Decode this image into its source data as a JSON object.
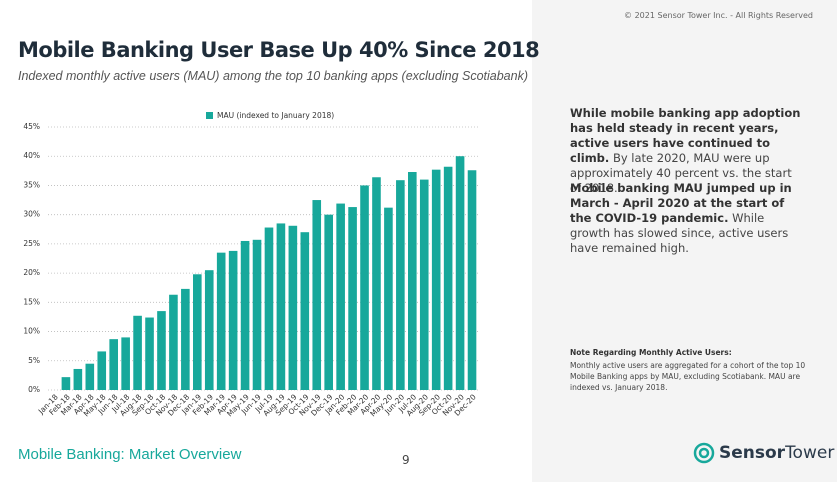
{
  "copyright": "© 2021 Sensor Tower Inc. - All Rights Reserved",
  "chart_data": {
    "type": "bar",
    "title": "Mobile Banking User Base Up 40% Since 2018",
    "subtitle": "Indexed monthly active users (MAU) among the top 10 banking apps (excluding Scotiabank)",
    "categories": [
      "Jan-18",
      "Feb-18",
      "Mar-18",
      "Apr-18",
      "May-18",
      "Jun-18",
      "Jul-18",
      "Aug-18",
      "Sep-18",
      "Oct-18",
      "Nov-18",
      "Dec-18",
      "Jan-19",
      "Feb-19",
      "Mar-19",
      "Apr-19",
      "May-19",
      "Jun-19",
      "Jul-19",
      "Aug-19",
      "Sep-19",
      "Oct-19",
      "Nov-19",
      "Dec-19",
      "Jan-20",
      "Feb-20",
      "Mar-20",
      "Apr-20",
      "May-20",
      "Jun-20",
      "Jul-20",
      "Aug-20",
      "Sep-20",
      "Oct-20",
      "Nov-20",
      "Dec-20"
    ],
    "series": [
      {
        "name": "MAU (indexed to January 2018)",
        "color": "#17a89b",
        "values": [
          0,
          2.2,
          3.6,
          4.5,
          6.6,
          8.7,
          9,
          12.7,
          12.4,
          13.5,
          16.3,
          17.3,
          19.8,
          20.5,
          23.5,
          23.8,
          25.5,
          25.7,
          27.8,
          28.5,
          28.1,
          27,
          32.5,
          30,
          31.9,
          31.3,
          35,
          36.4,
          31.2,
          35.9,
          37.3,
          36,
          37.7,
          38.2,
          40,
          37.6
        ]
      }
    ],
    "ylim": [
      0,
      45
    ],
    "yticks": [
      {
        "value": 0,
        "label": "0%"
      },
      {
        "value": 5,
        "label": "5%"
      },
      {
        "value": 10,
        "label": "10%"
      },
      {
        "value": 15,
        "label": "15%"
      },
      {
        "value": 20,
        "label": "20%"
      },
      {
        "value": 25,
        "label": "25%"
      },
      {
        "value": 30,
        "label": "30%"
      },
      {
        "value": 35,
        "label": "35%"
      },
      {
        "value": 40,
        "label": "40%"
      },
      {
        "value": 45,
        "label": "45%"
      }
    ],
    "grid": true
  },
  "insights": [
    {
      "bold": "While mobile banking app adoption has held steady in recent years, active users have continued to climb.",
      "text": " By late 2020, MAU were up approximately 40 percent vs. the start of 2018."
    },
    {
      "bold": "Mobile banking MAU jumped up in March - April 2020 at the start of the COVID-19 pandemic.",
      "text": " While growth has slowed since, active users have remained high."
    }
  ],
  "note": {
    "title": "Note Regarding Monthly Active Users:",
    "text": "Monthly active users are aggregated for a cohort of the top 10 Mobile Banking apps by MAU, excluding Scotiabank. MAU are indexed vs. January 2018."
  },
  "footer": {
    "section": "Mobile Banking: Market Overview",
    "page": "9",
    "logo_a": "Sensor",
    "logo_b": "Tower"
  }
}
